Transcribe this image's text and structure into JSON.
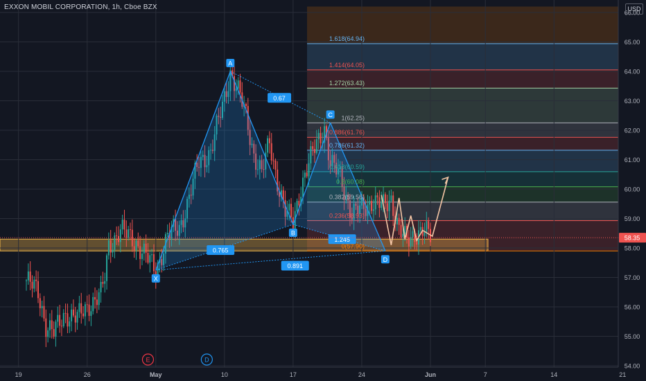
{
  "header": {
    "title": "EXXON MOBIL CORPORATION, 1h, Cboe BZX",
    "currency_badge": "USD"
  },
  "chart_data": {
    "type": "candlestick",
    "ylim": [
      53.9,
      66.2
    ],
    "price_ticks": [
      "54.00",
      "55.00",
      "56.00",
      "57.00",
      "58.00",
      "59.00",
      "60.00",
      "61.00",
      "62.00",
      "63.00",
      "64.00",
      "65.00",
      "66.00"
    ],
    "date_ticks": [
      {
        "label": "19",
        "bar": -4
      },
      {
        "label": "26",
        "bar": 31
      },
      {
        "label": "May",
        "bar": 66
      },
      {
        "label": "10",
        "bar": 101
      },
      {
        "label": "17",
        "bar": 136
      },
      {
        "label": "24",
        "bar": 171
      },
      {
        "label": "Jun",
        "bar": 206
      },
      {
        "label": "7",
        "bar": 234
      },
      {
        "label": "14",
        "bar": 269
      },
      {
        "label": "21",
        "bar": 304
      }
    ],
    "last_price": {
      "label": "58.35",
      "value": 58.35,
      "color": "#ef5350"
    },
    "candle_anchors": [
      [
        0,
        56.9
      ],
      [
        6,
        56.5
      ],
      [
        10,
        55.4
      ],
      [
        14,
        55.1
      ],
      [
        20,
        55.8
      ],
      [
        26,
        55.6
      ],
      [
        32,
        56.1
      ],
      [
        38,
        56.4
      ],
      [
        40,
        57.0
      ],
      [
        42,
        58.1
      ],
      [
        48,
        58.6
      ],
      [
        56,
        58.2
      ],
      [
        62,
        57.6
      ],
      [
        66,
        57.25
      ],
      [
        72,
        58.4
      ],
      [
        78,
        58.7
      ],
      [
        82,
        59.5
      ],
      [
        88,
        60.9
      ],
      [
        94,
        61.3
      ],
      [
        100,
        62.8
      ],
      [
        104,
        64.0
      ],
      [
        108,
        63.3
      ],
      [
        112,
        62.5
      ],
      [
        116,
        61.2
      ],
      [
        120,
        60.5
      ],
      [
        124,
        61.6
      ],
      [
        128,
        60.3
      ],
      [
        132,
        59.2
      ],
      [
        136,
        58.9
      ],
      [
        140,
        60.1
      ],
      [
        144,
        60.8
      ],
      [
        148,
        61.6
      ],
      [
        152,
        62.1
      ],
      [
        155,
        60.8
      ],
      [
        160,
        60.5
      ],
      [
        166,
        59.1
      ],
      [
        170,
        59.3
      ],
      [
        176,
        59.6
      ],
      [
        182,
        59.4
      ],
      [
        186,
        59.7
      ],
      [
        190,
        58.6
      ],
      [
        194,
        58.2
      ],
      [
        198,
        58.5
      ],
      [
        202,
        58.6
      ],
      [
        206,
        58.35
      ]
    ],
    "harmonic_pattern": {
      "points": [
        {
          "label": "X",
          "bar": 66,
          "value": 57.25
        },
        {
          "label": "A",
          "bar": 104,
          "value": 64.0
        },
        {
          "label": "B",
          "bar": 136,
          "value": 58.8
        },
        {
          "label": "C",
          "bar": 155,
          "value": 62.25
        },
        {
          "label": "D",
          "bar": 183,
          "value": 57.9
        }
      ],
      "ratios": [
        {
          "label": "0.67",
          "bar": 129,
          "value": 63.1
        },
        {
          "label": "0.765",
          "bar": 99,
          "value": 57.93
        },
        {
          "label": "0.891",
          "bar": 137,
          "value": 57.4
        },
        {
          "label": "1.245",
          "bar": 161,
          "value": 58.3
        }
      ]
    },
    "fib_levels": [
      {
        "label": "0(57.90)",
        "value": 57.9,
        "color": "#f57c00"
      },
      {
        "label": "0.236(58.93)",
        "value": 58.93,
        "color": "#ef5350"
      },
      {
        "label": "0.382(59.56)",
        "value": 59.56,
        "color": "#b2b5be"
      },
      {
        "label": "0.5(60.08)",
        "value": 60.08,
        "color": "#4caf50"
      },
      {
        "label": "0.618(60.59)",
        "value": 60.59,
        "color": "#26a69a"
      },
      {
        "label": "0.786(61.32)",
        "value": 61.32,
        "color": "#64b5f6"
      },
      {
        "label": "0.886(61.76)",
        "value": 61.76,
        "color": "#ef5350"
      },
      {
        "label": "1(62.25)",
        "value": 62.25,
        "color": "#b2b5be"
      },
      {
        "label": "1.272(63.43)",
        "value": 63.43,
        "color": "#a5d6a7"
      },
      {
        "label": "1.414(64.05)",
        "value": 64.05,
        "color": "#ef5350"
      },
      {
        "label": "1.618(64.94)",
        "value": 64.94,
        "color": "#64b5f6"
      }
    ],
    "projection_path": [
      [
        181,
        59.8
      ],
      [
        186,
        58.1
      ],
      [
        190,
        59.7
      ],
      [
        193,
        58.3
      ],
      [
        196,
        59.1
      ],
      [
        199,
        58.25
      ],
      [
        202,
        58.6
      ],
      [
        207,
        58.4
      ],
      [
        215,
        60.4
      ]
    ],
    "support_zone": {
      "low": 57.9,
      "high": 58.3
    },
    "events": [
      {
        "label": "E",
        "bar": 62,
        "color": "#f23645"
      },
      {
        "label": "D",
        "bar": 92,
        "color": "#2196f3"
      }
    ]
  }
}
